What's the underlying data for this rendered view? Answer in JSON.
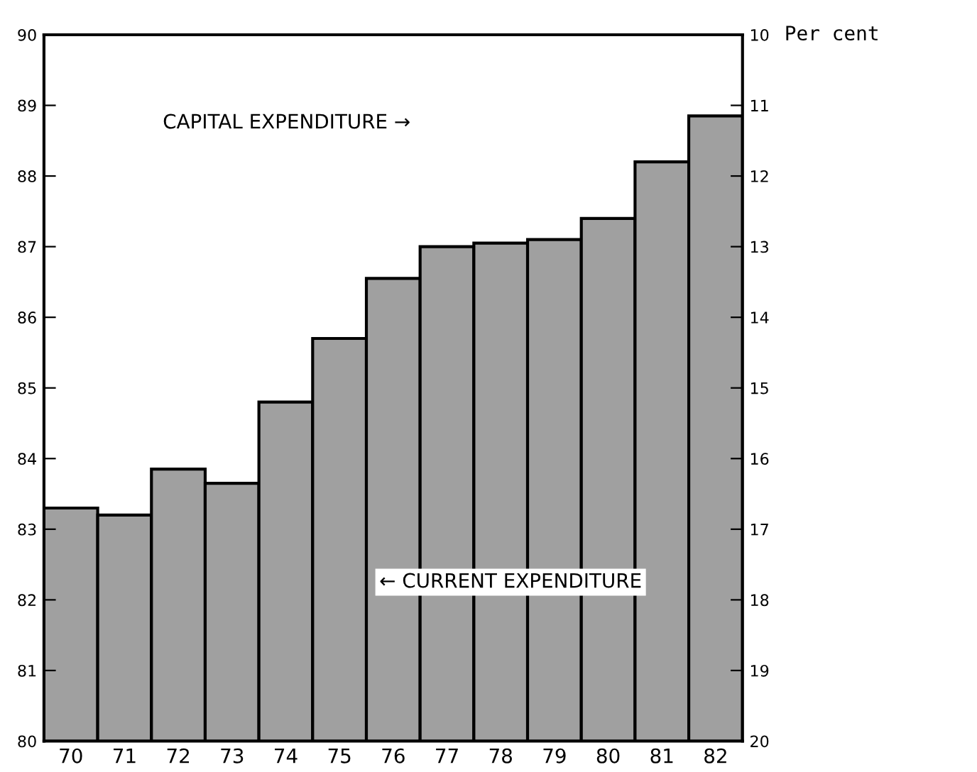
{
  "chart_data": {
    "type": "bar",
    "categories": [
      "70",
      "71",
      "72",
      "73",
      "74",
      "75",
      "76",
      "77",
      "78",
      "79",
      "80",
      "81",
      "82"
    ],
    "values": [
      83.3,
      83.2,
      83.85,
      83.65,
      84.8,
      85.7,
      86.55,
      87.0,
      87.05,
      87.1,
      87.4,
      88.2,
      88.85
    ],
    "color": "#a0a0a0",
    "ylim": [
      80,
      90
    ],
    "yticks": [
      80,
      81,
      82,
      83,
      84,
      85,
      86,
      87,
      88,
      89,
      90
    ],
    "y2lim": [
      20,
      10
    ],
    "y2ticks": [
      10,
      11,
      12,
      13,
      14,
      15,
      16,
      17,
      18,
      19,
      20
    ],
    "y2label": "Per cent",
    "annotations": [
      "CAPITAL EXPENDITURE →",
      "← CURRENT EXPENDITURE"
    ],
    "grid": false,
    "legend": false
  }
}
